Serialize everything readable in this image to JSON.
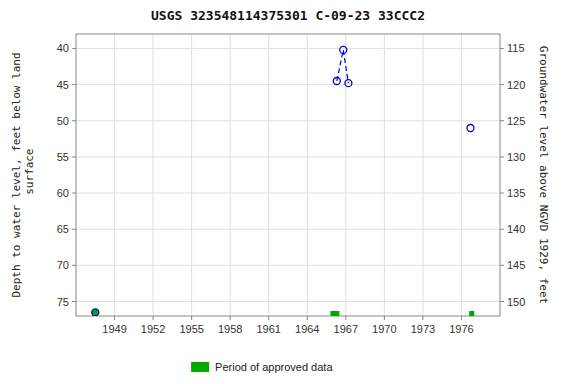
{
  "chart_data": {
    "type": "scatter",
    "title": "USGS 323548114375301 C-09-23 33CCC2",
    "ylabel": "Depth to water level, feet below land\n surface",
    "y2label": "Groundwater level above NGVD 1929, feet",
    "xlim": [
      1946,
      1979
    ],
    "xticks": [
      1949,
      1952,
      1955,
      1958,
      1961,
      1964,
      1967,
      1970,
      1973,
      1976
    ],
    "ylim": [
      77,
      38
    ],
    "yticks": [
      40,
      45,
      50,
      55,
      60,
      65,
      70,
      75
    ],
    "y2lim": [
      152,
      113
    ],
    "y2ticks": [
      150,
      145,
      140,
      135,
      130,
      125,
      120,
      115
    ],
    "grid": true,
    "legend": "bottom",
    "series": [
      {
        "name": "Period of approved data",
        "type": "span",
        "color": "#00aa00",
        "x_start": [
          1965.8,
          1976.6
        ],
        "x_end": [
          1966.5,
          1977.0
        ]
      },
      {
        "type": "line",
        "line_style": "dashed",
        "color": "#0000cc",
        "x": [
          1966.3,
          1966.8,
          1967.2
        ],
        "values": [
          44.5,
          40.2,
          44.8
        ]
      },
      {
        "type": "scatter",
        "marker": "circle",
        "color": "#0000cc",
        "colors": [
          "#00aa00",
          "none",
          "none",
          "none",
          "none"
        ],
        "x": [
          1947.5,
          1966.3,
          1966.8,
          1967.2,
          1976.7
        ],
        "values": [
          76.5,
          44.5,
          40.2,
          44.8,
          51.0
        ]
      }
    ]
  }
}
